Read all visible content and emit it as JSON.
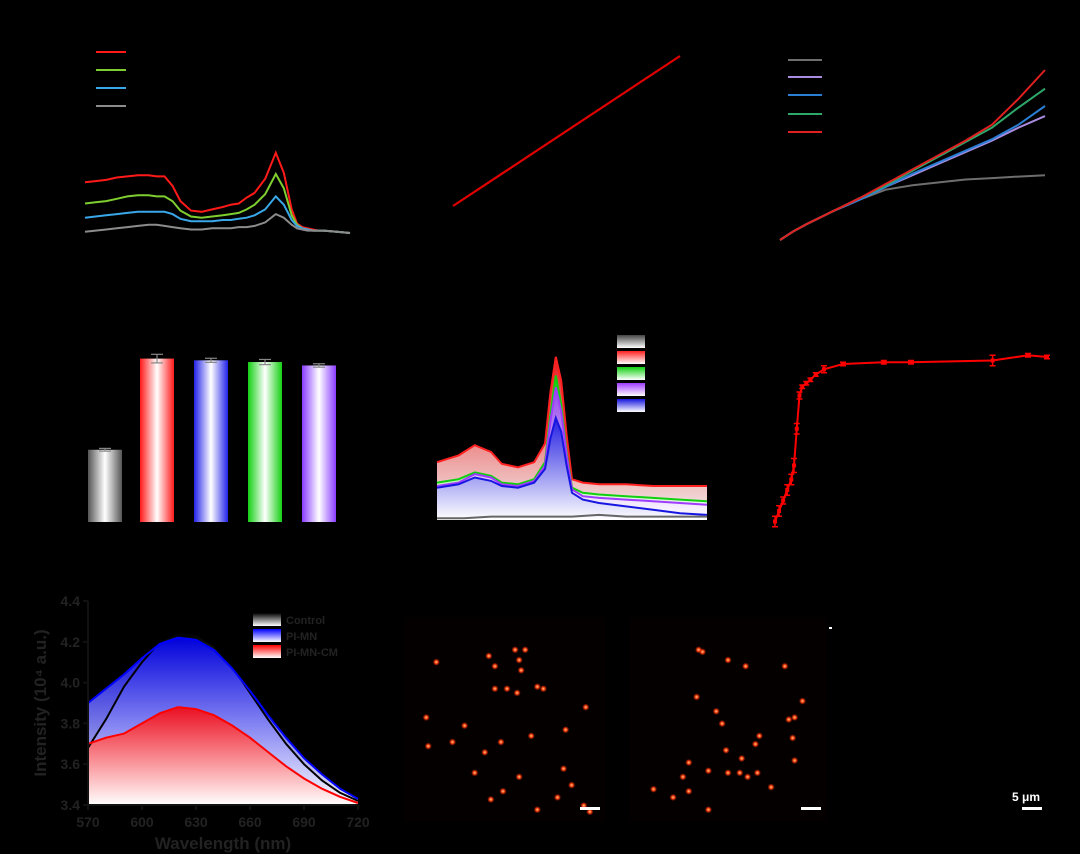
{
  "chart_data": [
    {
      "id": "a",
      "type": "line",
      "xlabel": "",
      "ylabel": "",
      "xlim": [
        0,
        100
      ],
      "ylim": [
        0,
        100
      ],
      "series": [
        {
          "color": "#ff1a1a",
          "x": [
            0,
            4,
            8,
            12,
            16,
            20,
            24,
            27,
            30,
            33,
            36,
            40,
            44,
            48,
            52,
            55,
            58,
            61,
            64,
            68,
            72,
            75,
            78,
            80,
            82,
            84,
            86,
            88,
            90,
            95,
            100
          ],
          "y": [
            43,
            44,
            45,
            47,
            48,
            49,
            49,
            48,
            48,
            40,
            27,
            19,
            18,
            20,
            22,
            24,
            25,
            30,
            34,
            46,
            68,
            51,
            20,
            8,
            5,
            4,
            3,
            2,
            2,
            1,
            0
          ]
        },
        {
          "color": "#7fce2f",
          "x": [
            0,
            4,
            8,
            12,
            16,
            20,
            24,
            27,
            30,
            33,
            36,
            40,
            44,
            48,
            52,
            55,
            58,
            61,
            64,
            68,
            72,
            75,
            78,
            80,
            82,
            84,
            86,
            88,
            90,
            95,
            100
          ],
          "y": [
            25,
            26,
            27,
            29,
            31,
            32,
            32,
            31,
            31,
            27,
            19,
            14,
            13,
            14,
            15,
            16,
            17,
            20,
            24,
            33,
            50,
            38,
            15,
            7,
            4,
            3,
            2,
            2,
            2,
            1,
            0
          ]
        },
        {
          "color": "#39a7e8",
          "x": [
            0,
            4,
            8,
            12,
            16,
            20,
            24,
            27,
            30,
            33,
            36,
            40,
            44,
            48,
            52,
            55,
            58,
            61,
            64,
            68,
            72,
            75,
            78,
            80,
            82,
            84,
            86,
            88,
            90,
            95,
            100
          ],
          "y": [
            13,
            14,
            15,
            16,
            17,
            18,
            18,
            18,
            18,
            16,
            12,
            10,
            10,
            10,
            11,
            11,
            12,
            13,
            15,
            20,
            31,
            24,
            11,
            6,
            4,
            3,
            2,
            2,
            2,
            1,
            0
          ]
        },
        {
          "color": "#8c8c8c",
          "x": [
            0,
            4,
            8,
            12,
            16,
            20,
            24,
            27,
            30,
            33,
            36,
            40,
            44,
            48,
            52,
            55,
            58,
            61,
            64,
            68,
            72,
            75,
            78,
            80,
            82,
            84,
            86,
            88,
            90,
            95,
            100
          ],
          "y": [
            1,
            2,
            3,
            4,
            5,
            6,
            7,
            7,
            6,
            5,
            4,
            3,
            3,
            4,
            4,
            4,
            5,
            5,
            6,
            9,
            16,
            13,
            7,
            4,
            3,
            2,
            2,
            2,
            2,
            1,
            0
          ]
        }
      ]
    },
    {
      "id": "b",
      "type": "line",
      "xlabel": "",
      "ylabel": "",
      "xlim": [
        0,
        100
      ],
      "ylim": [
        0,
        100
      ],
      "series": [
        {
          "color": "#e00000",
          "x": [
            0,
            100
          ],
          "y": [
            0,
            100
          ]
        }
      ]
    },
    {
      "id": "c",
      "type": "line",
      "xlabel": "",
      "ylabel": "",
      "xlim": [
        0,
        100
      ],
      "ylim": [
        0,
        100
      ],
      "series": [
        {
          "color": "#6e6e6e",
          "x": [
            0,
            5,
            10,
            20,
            30,
            40,
            50,
            60,
            70,
            80,
            90,
            100
          ],
          "y": [
            0,
            6,
            11,
            20,
            28,
            35,
            38,
            40,
            42,
            43,
            44,
            45
          ]
        },
        {
          "color": "#a98ce0",
          "x": [
            0,
            5,
            10,
            20,
            30,
            40,
            50,
            60,
            70,
            80,
            90,
            100
          ],
          "y": [
            0,
            6,
            11,
            20,
            28,
            37,
            45,
            53,
            61,
            69,
            78,
            86
          ]
        },
        {
          "color": "#2a7fd4",
          "x": [
            0,
            5,
            10,
            20,
            30,
            40,
            50,
            60,
            70,
            80,
            90,
            100
          ],
          "y": [
            0,
            6,
            11,
            20,
            28,
            37,
            46,
            54,
            62,
            70,
            80,
            93
          ]
        },
        {
          "color": "#2ea86a",
          "x": [
            0,
            5,
            10,
            20,
            30,
            40,
            50,
            60,
            70,
            80,
            90,
            100
          ],
          "y": [
            0,
            6,
            11,
            20,
            29,
            38,
            48,
            58,
            68,
            78,
            92,
            105
          ]
        },
        {
          "color": "#e02020",
          "x": [
            0,
            5,
            10,
            20,
            30,
            40,
            50,
            60,
            70,
            80,
            90,
            100
          ],
          "y": [
            0,
            6,
            11,
            20,
            29,
            39,
            49,
            59,
            69,
            80,
            98,
            118
          ]
        }
      ]
    },
    {
      "id": "d",
      "type": "bar",
      "xlabel": "",
      "ylabel": "",
      "ylim": [
        0,
        100
      ],
      "series": [
        {
          "values": [
            42,
            95,
            94,
            93,
            91
          ],
          "errors": [
            0.8,
            2.5,
            1.2,
            1.5,
            1.0
          ]
        }
      ],
      "colors": [
        "#555555",
        "#ff1a1a",
        "#2323e8",
        "#12d012",
        "#8a3cff"
      ]
    },
    {
      "id": "e",
      "type": "area",
      "xlabel": "",
      "ylabel": "",
      "xlim": [
        0,
        100
      ],
      "ylim": [
        0,
        100
      ],
      "series": [
        {
          "color": "#ff2020",
          "x": [
            0,
            8,
            14,
            20,
            24,
            30,
            36,
            40,
            42,
            44,
            46,
            48,
            50,
            54,
            60,
            70,
            80,
            90,
            100
          ],
          "y": [
            34,
            38,
            44,
            40,
            33,
            31,
            34,
            45,
            75,
            96,
            82,
            50,
            24,
            22,
            21,
            21,
            20,
            20,
            20
          ]
        },
        {
          "color": "#10d010",
          "x": [
            0,
            8,
            14,
            20,
            24,
            30,
            36,
            40,
            42,
            44,
            46,
            48,
            50,
            54,
            60,
            70,
            80,
            90,
            100
          ],
          "y": [
            22,
            24,
            28,
            26,
            22,
            21,
            24,
            34,
            62,
            85,
            68,
            40,
            19,
            16,
            15,
            14,
            13,
            12,
            11
          ]
        },
        {
          "color": "#a03cff",
          "x": [
            0,
            8,
            14,
            20,
            24,
            30,
            36,
            40,
            42,
            44,
            46,
            48,
            50,
            54,
            60,
            70,
            80,
            90,
            100
          ],
          "y": [
            20,
            22,
            27,
            25,
            21,
            20,
            23,
            32,
            58,
            78,
            64,
            38,
            18,
            14,
            13,
            12,
            11,
            10,
            9
          ]
        },
        {
          "color": "#1616e0",
          "x": [
            0,
            8,
            14,
            20,
            24,
            30,
            36,
            40,
            42,
            44,
            46,
            48,
            50,
            54,
            60,
            70,
            80,
            90,
            100
          ],
          "y": [
            19,
            21,
            25,
            23,
            20,
            19,
            22,
            30,
            48,
            60,
            52,
            32,
            16,
            12,
            10,
            8,
            6,
            4,
            3
          ]
        },
        {
          "color": "#666666",
          "x": [
            0,
            10,
            20,
            30,
            40,
            50,
            60,
            70,
            80,
            90,
            100
          ],
          "y": [
            1,
            1,
            2,
            2,
            2,
            2,
            3,
            2,
            2,
            2,
            2
          ]
        }
      ]
    },
    {
      "id": "f",
      "type": "line",
      "xlabel": "",
      "ylabel": "",
      "xlim": [
        0,
        100
      ],
      "ylim": [
        0,
        100
      ],
      "series": [
        {
          "color": "#ff0000",
          "x": [
            0,
            1.5,
            3,
            4.5,
            6,
            7,
            8,
            9,
            10,
            11.5,
            13,
            15,
            18,
            25,
            40,
            50,
            80,
            93,
            100
          ],
          "y": [
            2,
            8,
            14,
            20,
            26,
            34,
            55,
            74,
            79,
            81,
            83,
            86,
            89,
            92,
            93,
            93,
            94,
            97,
            96
          ],
          "errors": [
            3,
            3,
            2,
            3,
            3,
            4,
            3,
            2,
            1,
            1,
            1,
            1,
            2,
            1,
            1,
            1,
            3,
            1,
            1
          ]
        }
      ]
    },
    {
      "id": "g",
      "type": "area",
      "xlabel": "Wavelength (nm)",
      "ylabel": "Intensity (10⁴ a.u.)",
      "xlim": [
        570,
        720
      ],
      "ylim": [
        3.4,
        4.4
      ],
      "xticks": [
        570,
        600,
        630,
        660,
        690,
        720
      ],
      "yticks": [
        3.4,
        3.6,
        3.8,
        4.0,
        4.2,
        4.4
      ],
      "xtick_labels": [
        "570",
        "600",
        "630",
        "660",
        "690",
        "720"
      ],
      "ytick_labels": [
        "3.4",
        "3.6",
        "3.8",
        "4.0",
        "4.2",
        "4.4"
      ],
      "series": [
        {
          "name": "Control",
          "color": "#000000",
          "x": [
            570,
            580,
            590,
            600,
            610,
            620,
            630,
            640,
            650,
            660,
            670,
            680,
            690,
            700,
            710,
            720
          ],
          "y": [
            3.68,
            3.82,
            3.98,
            4.1,
            4.2,
            4.25,
            4.24,
            4.18,
            4.08,
            3.95,
            3.82,
            3.7,
            3.6,
            3.52,
            3.46,
            3.42
          ]
        },
        {
          "name": "PI-MN",
          "color": "#0000ff",
          "x": [
            570,
            580,
            590,
            600,
            610,
            620,
            630,
            640,
            650,
            660,
            670,
            680,
            690,
            700,
            710,
            720
          ],
          "y": [
            3.9,
            3.97,
            4.04,
            4.12,
            4.19,
            4.22,
            4.21,
            4.16,
            4.07,
            3.96,
            3.84,
            3.73,
            3.63,
            3.55,
            3.48,
            3.43
          ]
        },
        {
          "name": "PI-MN-CM",
          "color": "#ff0000",
          "x": [
            570,
            580,
            590,
            600,
            610,
            620,
            630,
            640,
            650,
            660,
            670,
            680,
            690,
            700,
            710,
            720
          ],
          "y": [
            3.7,
            3.73,
            3.75,
            3.8,
            3.85,
            3.88,
            3.87,
            3.84,
            3.79,
            3.73,
            3.66,
            3.59,
            3.53,
            3.48,
            3.44,
            3.41
          ]
        }
      ]
    }
  ],
  "legend_g": [
    "Control",
    "PI-MN",
    "PI-MN-CM"
  ],
  "scalebar": {
    "label": "5 μm"
  },
  "fluorescence": {
    "panel1": [
      [
        55,
        16
      ],
      [
        60,
        16
      ],
      [
        42,
        19
      ],
      [
        57,
        21
      ],
      [
        58,
        26
      ],
      [
        16,
        22
      ],
      [
        90,
        44
      ],
      [
        51,
        35
      ],
      [
        66,
        34
      ],
      [
        80,
        55
      ],
      [
        30,
        53
      ],
      [
        63,
        58
      ],
      [
        48,
        61
      ],
      [
        79,
        74
      ],
      [
        40,
        66
      ],
      [
        35,
        76
      ],
      [
        57,
        78
      ],
      [
        49,
        85
      ],
      [
        43,
        89
      ],
      [
        83,
        82
      ],
      [
        76,
        88
      ],
      [
        66,
        94
      ],
      [
        11,
        49
      ],
      [
        12,
        63
      ],
      [
        24,
        61
      ],
      [
        45,
        35
      ],
      [
        45,
        24
      ],
      [
        69,
        35
      ],
      [
        56,
        37
      ],
      [
        89,
        92
      ],
      [
        92,
        95
      ]
    ],
    "panel2": [
      [
        35,
        16
      ],
      [
        37,
        17
      ],
      [
        50,
        21
      ],
      [
        59,
        24
      ],
      [
        79,
        24
      ],
      [
        34,
        39
      ],
      [
        44,
        46
      ],
      [
        88,
        41
      ],
      [
        81,
        50
      ],
      [
        84,
        49
      ],
      [
        47,
        52
      ],
      [
        66,
        58
      ],
      [
        49,
        65
      ],
      [
        57,
        69
      ],
      [
        40,
        75
      ],
      [
        27,
        78
      ],
      [
        50,
        76
      ],
      [
        56,
        76
      ],
      [
        60,
        78
      ],
      [
        65,
        76
      ],
      [
        64,
        62
      ],
      [
        83,
        59
      ],
      [
        72,
        83
      ],
      [
        84,
        70
      ],
      [
        30,
        85
      ],
      [
        22,
        88
      ],
      [
        40,
        94
      ],
      [
        12,
        84
      ],
      [
        30,
        71
      ]
    ]
  }
}
